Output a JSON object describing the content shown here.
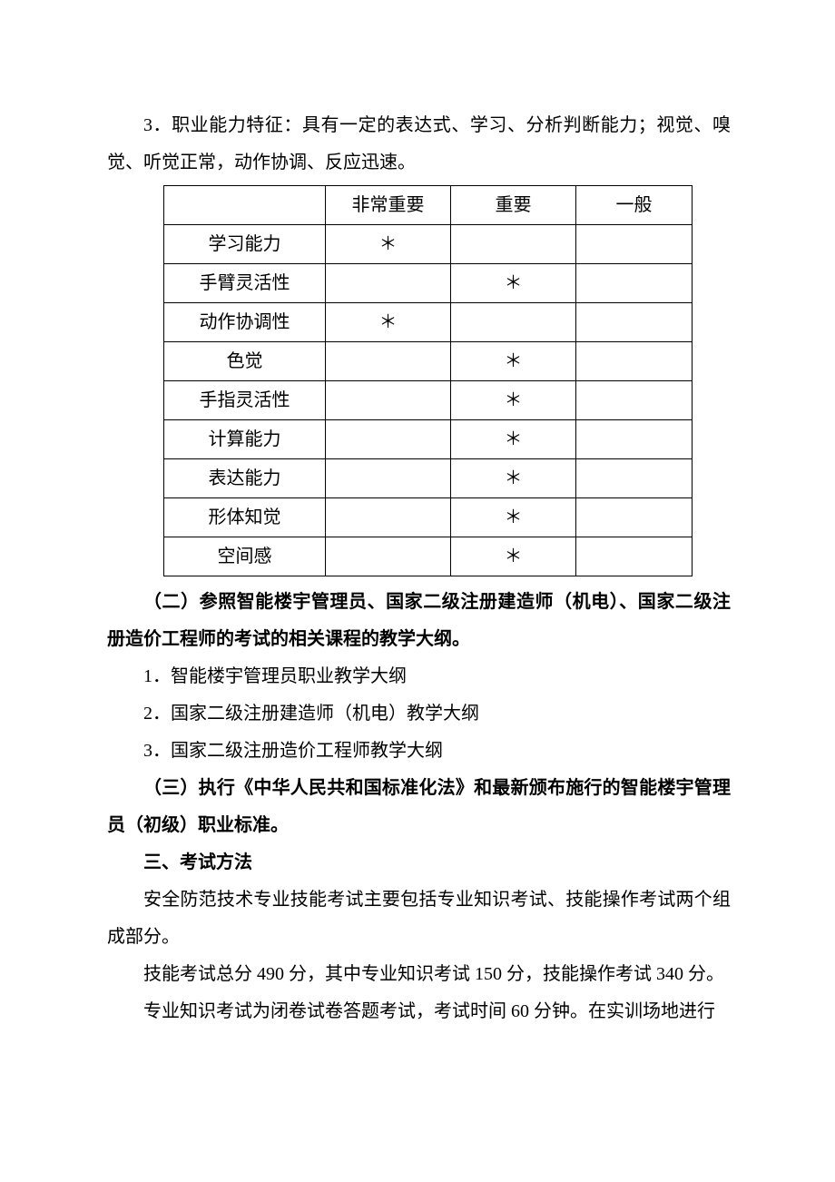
{
  "p3": "3．职业能力特征：具有一定的表达式、学习、分析判断能力；视觉、嗅觉、听觉正常，动作协调、反应迅速。",
  "ability_table": {
    "columns": [
      "",
      "非常重要",
      "重要",
      "一般"
    ],
    "rows": [
      {
        "label": "学习能力",
        "very": "＊",
        "imp": "",
        "gen": ""
      },
      {
        "label": "手臂灵活性",
        "very": "",
        "imp": "＊",
        "gen": ""
      },
      {
        "label": "动作协调性",
        "very": "＊",
        "imp": "",
        "gen": ""
      },
      {
        "label": "色觉",
        "very": "",
        "imp": "＊",
        "gen": ""
      },
      {
        "label": "手指灵活性",
        "very": "",
        "imp": "＊",
        "gen": ""
      },
      {
        "label": "计算能力",
        "very": "",
        "imp": "＊",
        "gen": ""
      },
      {
        "label": "表达能力",
        "very": "",
        "imp": "＊",
        "gen": ""
      },
      {
        "label": "形体知觉",
        "very": "",
        "imp": "＊",
        "gen": ""
      },
      {
        "label": "空间感",
        "very": "",
        "imp": "＊",
        "gen": ""
      }
    ]
  },
  "sec2": "（二）参照智能楼宇管理员、国家二级注册建造师（机电）、国家二级注册造价工程师的考试的相关课程的教学大纲。",
  "item1": "1．智能楼宇管理员职业教学大纲",
  "item2": "2．国家二级注册建造师（机电）教学大纲",
  "item3": "3．国家二级注册造价工程师教学大纲",
  "sec3": "（三）执行《中华人民共和国标准化法》和最新颁布施行的智能楼宇管理员（初级）职业标准。",
  "h3": "三、考试方法",
  "m1": "安全防范技术专业技能考试主要包括专业知识考试、技能操作考试两个组成部分。",
  "m2": "技能考试总分 490 分，其中专业知识考试 150 分，技能操作考试 340 分。",
  "m3": "专业知识考试为闭卷试卷答题考试，考试时间 60 分钟。在实训场地进行"
}
